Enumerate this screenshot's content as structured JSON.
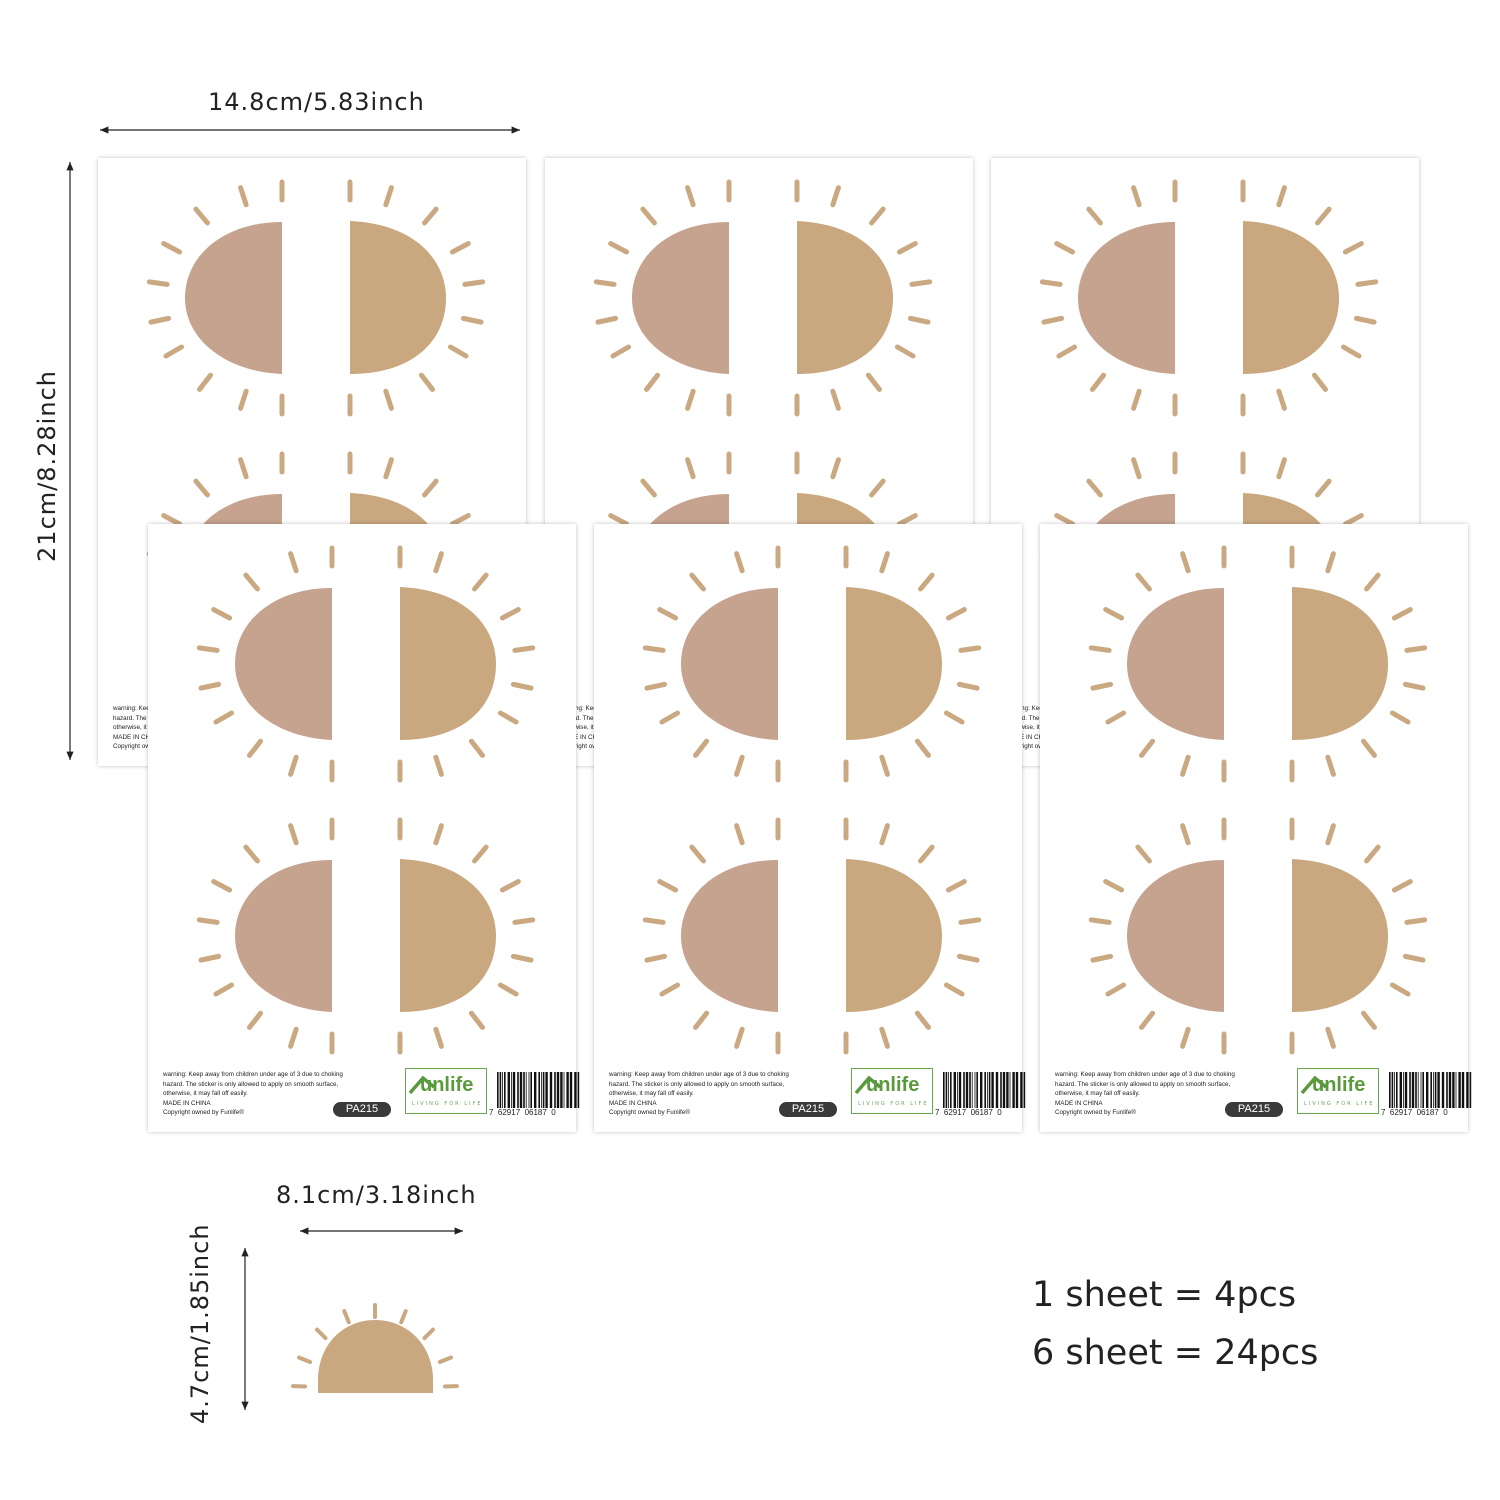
{
  "colors": {
    "pink_half": "#c6a38f",
    "tan_half": "#c9a77f",
    "rays": "#c9a882"
  },
  "dimensions": {
    "sheet_width": "14.8cm/5.83inch",
    "sheet_height": "21cm/8.28inch",
    "sticker_width": "8.1cm/3.18inch",
    "sticker_height": "4.7cm/1.85inch"
  },
  "sheet_footer": {
    "warning_lines": [
      "warning: Keep away from children under age of 3 due to choking",
      "hazard. The sticker is only allowed to apply on smooth surface,",
      "otherwise, it may fall off easily.",
      "MADE IN CHINA",
      "Copyright owned by Funlife®"
    ],
    "product_code": "PA215",
    "brand_logo": "Funlife",
    "brand_logo_text": "unlife",
    "brand_tagline": "LIVING FOR LIFE",
    "barcode_digits": "7  62917  06187  0"
  },
  "summary": {
    "line1": "1 sheet = 4pcs",
    "line2": "6 sheet = 24pcs"
  }
}
